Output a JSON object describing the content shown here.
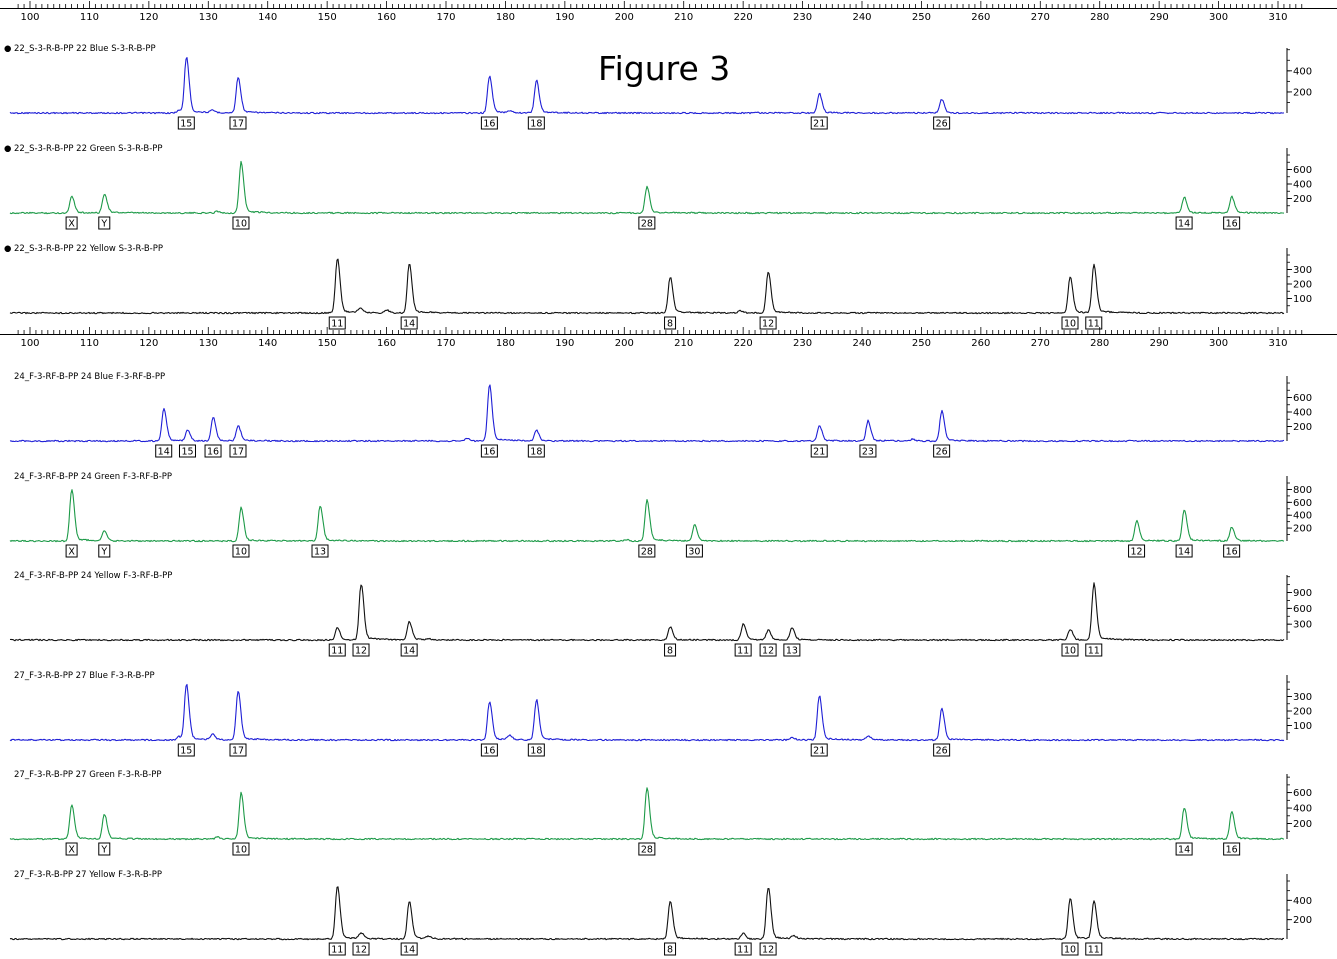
{
  "figure_title": "Figure 3",
  "colors": {
    "Blue": "#1f1fd6",
    "Green": "#1d9a48",
    "Yellow": "#111111"
  },
  "chart_data": {
    "type": "line",
    "x_axis_label": "",
    "x_ticks": [
      100,
      110,
      120,
      130,
      140,
      150,
      160,
      170,
      180,
      190,
      200,
      210,
      220,
      230,
      240,
      250,
      260,
      270,
      280,
      290,
      300,
      310
    ],
    "x_range": [
      96,
      314
    ],
    "groups": [
      {
        "x_ticks_printed": true,
        "lanes": [
          {
            "label": "22_S-3-R-B-PP     22 Blue    S-3-R-B-PP",
            "bullet": "●",
            "dye": "Blue",
            "y_max": 550,
            "y_ticks": [
              200,
              400
            ],
            "peaks": [
              {
                "bp": 126.3,
                "height": 520
              },
              {
                "bp": 135,
                "height": 330
              },
              {
                "bp": 177.3,
                "height": 340
              },
              {
                "bp": 185.2,
                "height": 300
              },
              {
                "bp": 232.8,
                "height": 180
              },
              {
                "bp": 253.4,
                "height": 130
              }
            ],
            "minor_peaks": [
              {
                "bp": 125,
                "height": 25
              },
              {
                "bp": 130.7,
                "height": 20
              },
              {
                "bp": 180.7,
                "height": 20
              },
              {
                "bp": 222,
                "height": 10
              }
            ],
            "alleles": [
              {
                "bp": 126.3,
                "label": "15"
              },
              {
                "bp": 135,
                "label": "17"
              },
              {
                "bp": 177.3,
                "label": "16"
              },
              {
                "bp": 185.2,
                "label": "18"
              },
              {
                "bp": 232.8,
                "label": "21"
              },
              {
                "bp": 253.4,
                "label": "26"
              }
            ]
          },
          {
            "label": "22_S-3-R-B-PP     22 Green    S-3-R-B-PP",
            "bullet": "●",
            "dye": "Green",
            "y_max": 800,
            "y_ticks": [
              200,
              400,
              600
            ],
            "peaks": [
              {
                "bp": 107,
                "height": 230
              },
              {
                "bp": 112.5,
                "height": 260
              },
              {
                "bp": 135.5,
                "height": 680
              },
              {
                "bp": 203.8,
                "height": 350
              },
              {
                "bp": 294.2,
                "height": 215
              },
              {
                "bp": 302.2,
                "height": 215
              }
            ],
            "minor_peaks": [
              {
                "bp": 131.5,
                "height": 25
              },
              {
                "bp": 200,
                "height": 10
              }
            ],
            "alleles": [
              {
                "bp": 107,
                "label": "X"
              },
              {
                "bp": 112.5,
                "label": "Y"
              },
              {
                "bp": 135.5,
                "label": "10"
              },
              {
                "bp": 203.8,
                "label": "28"
              },
              {
                "bp": 294.2,
                "label": "14"
              },
              {
                "bp": 302.2,
                "label": "16"
              }
            ]
          },
          {
            "label": "22_S-3-R-B-PP     22 Yellow    S-3-R-B-PP",
            "bullet": "●",
            "dye": "Yellow",
            "y_max": 400,
            "y_ticks": [
              100,
              200,
              300
            ],
            "peaks": [
              {
                "bp": 151.7,
                "height": 370
              },
              {
                "bp": 163.8,
                "height": 335
              },
              {
                "bp": 207.7,
                "height": 245
              },
              {
                "bp": 224.2,
                "height": 280
              },
              {
                "bp": 275,
                "height": 245
              },
              {
                "bp": 279,
                "height": 320
              }
            ],
            "minor_peaks": [
              {
                "bp": 155.5,
                "height": 30
              },
              {
                "bp": 160,
                "height": 20
              },
              {
                "bp": 219.5,
                "height": 15
              }
            ],
            "alleles": [
              {
                "bp": 151.7,
                "label": "11"
              },
              {
                "bp": 163.8,
                "label": "14"
              },
              {
                "bp": 207.7,
                "label": "8"
              },
              {
                "bp": 224.2,
                "label": "12"
              },
              {
                "bp": 275,
                "label": "10"
              },
              {
                "bp": 279,
                "label": "11"
              }
            ]
          }
        ]
      },
      {
        "x_ticks_printed": true,
        "lanes": [
          {
            "label": "24_F-3-RF-B-PP     24 Blue    F-3-RF-B-PP",
            "bullet": "",
            "dye": "Blue",
            "y_max": 800,
            "y_ticks": [
              200,
              400,
              600
            ],
            "peaks": [
              {
                "bp": 122.5,
                "height": 440
              },
              {
                "bp": 126.5,
                "height": 140
              },
              {
                "bp": 130.8,
                "height": 320
              },
              {
                "bp": 135,
                "height": 200
              },
              {
                "bp": 177.3,
                "height": 750
              },
              {
                "bp": 185.2,
                "height": 150
              },
              {
                "bp": 232.8,
                "height": 210
              },
              {
                "bp": 241,
                "height": 270
              },
              {
                "bp": 253.4,
                "height": 400
              }
            ],
            "minor_peaks": [
              {
                "bp": 173.5,
                "height": 40
              },
              {
                "bp": 248.5,
                "height": 25
              }
            ],
            "alleles": [
              {
                "bp": 122.5,
                "label": "14"
              },
              {
                "bp": 126.5,
                "label": "15"
              },
              {
                "bp": 130.8,
                "label": "16"
              },
              {
                "bp": 135,
                "label": "17"
              },
              {
                "bp": 177.3,
                "label": "16"
              },
              {
                "bp": 185.2,
                "label": "18"
              },
              {
                "bp": 232.8,
                "label": "21"
              },
              {
                "bp": 241,
                "label": "23"
              },
              {
                "bp": 253.4,
                "label": "26"
              }
            ]
          },
          {
            "label": "24_F-3-RF-B-PP     24 Green    F-3-RF-B-PP",
            "bullet": "",
            "dye": "Green",
            "y_max": 900,
            "y_ticks": [
              200,
              400,
              600,
              800
            ],
            "peaks": [
              {
                "bp": 107,
                "height": 780
              },
              {
                "bp": 112.5,
                "height": 150
              },
              {
                "bp": 135.5,
                "height": 500
              },
              {
                "bp": 148.8,
                "height": 540
              },
              {
                "bp": 203.8,
                "height": 620
              },
              {
                "bp": 211.8,
                "height": 240
              },
              {
                "bp": 286.2,
                "height": 300
              },
              {
                "bp": 294.2,
                "height": 480
              },
              {
                "bp": 302.2,
                "height": 210
              }
            ],
            "minor_peaks": [
              {
                "bp": 200.3,
                "height": 20
              }
            ],
            "alleles": [
              {
                "bp": 107,
                "label": "X"
              },
              {
                "bp": 112.5,
                "label": "Y"
              },
              {
                "bp": 135.5,
                "label": "10"
              },
              {
                "bp": 148.8,
                "label": "13"
              },
              {
                "bp": 203.8,
                "label": "28"
              },
              {
                "bp": 211.8,
                "label": "30"
              },
              {
                "bp": 286.2,
                "label": "12"
              },
              {
                "bp": 294.2,
                "label": "14"
              },
              {
                "bp": 302.2,
                "label": "16"
              }
            ]
          },
          {
            "label": "24_F-3-RF-B-PP     24 Yellow    F-3-RF-B-PP",
            "bullet": "",
            "dye": "Yellow",
            "y_max": 1100,
            "y_ticks": [
              300,
              600,
              900
            ],
            "peaks": [
              {
                "bp": 151.7,
                "height": 230
              },
              {
                "bp": 155.7,
                "height": 1050
              },
              {
                "bp": 163.8,
                "height": 340
              },
              {
                "bp": 207.7,
                "height": 240
              },
              {
                "bp": 220,
                "height": 300
              },
              {
                "bp": 224.2,
                "height": 180
              },
              {
                "bp": 228.2,
                "height": 220
              },
              {
                "bp": 275,
                "height": 200
              },
              {
                "bp": 279,
                "height": 1030
              }
            ],
            "minor_peaks": [
              {
                "bp": 167,
                "height": 20
              }
            ],
            "alleles": [
              {
                "bp": 151.7,
                "label": "11"
              },
              {
                "bp": 155.7,
                "label": "12"
              },
              {
                "bp": 163.8,
                "label": "14"
              },
              {
                "bp": 207.7,
                "label": "8"
              },
              {
                "bp": 220,
                "label": "11"
              },
              {
                "bp": 224.2,
                "label": "12"
              },
              {
                "bp": 228.2,
                "label": "13"
              },
              {
                "bp": 275,
                "label": "10"
              },
              {
                "bp": 279,
                "label": "11"
              }
            ]
          },
          {
            "label": "27_F-3-R-B-PP     27 Blue    F-3-R-B-PP",
            "bullet": "",
            "dye": "Blue",
            "y_max": 400,
            "y_ticks": [
              100,
              200,
              300
            ],
            "peaks": [
              {
                "bp": 126.3,
                "height": 375
              },
              {
                "bp": 135,
                "height": 330
              },
              {
                "bp": 177.3,
                "height": 260
              },
              {
                "bp": 185.2,
                "height": 270
              },
              {
                "bp": 232.8,
                "height": 300
              },
              {
                "bp": 253.4,
                "height": 210
              }
            ],
            "minor_peaks": [
              {
                "bp": 125,
                "height": 25
              },
              {
                "bp": 130.7,
                "height": 40
              },
              {
                "bp": 180.7,
                "height": 30
              },
              {
                "bp": 228.2,
                "height": 20
              },
              {
                "bp": 241,
                "height": 30
              }
            ],
            "alleles": [
              {
                "bp": 126.3,
                "label": "15"
              },
              {
                "bp": 135,
                "label": "17"
              },
              {
                "bp": 177.3,
                "label": "16"
              },
              {
                "bp": 185.2,
                "label": "18"
              },
              {
                "bp": 232.8,
                "label": "21"
              },
              {
                "bp": 253.4,
                "label": "26"
              }
            ]
          },
          {
            "label": "27_F-3-R-B-PP     27 Green    F-3-R-B-PP",
            "bullet": "",
            "dye": "Green",
            "y_max": 750,
            "y_ticks": [
              200,
              400,
              600
            ],
            "peaks": [
              {
                "bp": 107,
                "height": 430
              },
              {
                "bp": 112.5,
                "height": 310
              },
              {
                "bp": 135.5,
                "height": 580
              },
              {
                "bp": 203.8,
                "height": 640
              },
              {
                "bp": 294.2,
                "height": 400
              },
              {
                "bp": 302.2,
                "height": 345
              }
            ],
            "minor_peaks": [
              {
                "bp": 131.5,
                "height": 25
              }
            ],
            "alleles": [
              {
                "bp": 107,
                "label": "X"
              },
              {
                "bp": 112.5,
                "label": "Y"
              },
              {
                "bp": 135.5,
                "label": "10"
              },
              {
                "bp": 203.8,
                "label": "28"
              },
              {
                "bp": 294.2,
                "label": "14"
              },
              {
                "bp": 302.2,
                "label": "16"
              }
            ]
          },
          {
            "label": "27_F-3-R-B-PP     27 Yellow    F-3-R-B-PP",
            "bullet": "",
            "dye": "Yellow",
            "y_max": 600,
            "y_ticks": [
              200,
              400
            ],
            "peaks": [
              {
                "bp": 151.7,
                "height": 540
              },
              {
                "bp": 155.7,
                "height": 60
              },
              {
                "bp": 163.8,
                "height": 380
              },
              {
                "bp": 207.7,
                "height": 390
              },
              {
                "bp": 220,
                "height": 60
              },
              {
                "bp": 224.2,
                "height": 530
              },
              {
                "bp": 275,
                "height": 410
              },
              {
                "bp": 279,
                "height": 380
              }
            ],
            "minor_peaks": [
              {
                "bp": 167,
                "height": 25
              },
              {
                "bp": 228.5,
                "height": 30
              }
            ],
            "alleles": [
              {
                "bp": 151.7,
                "label": "11"
              },
              {
                "bp": 155.7,
                "label": "12"
              },
              {
                "bp": 163.8,
                "label": "14"
              },
              {
                "bp": 207.7,
                "label": "8"
              },
              {
                "bp": 220,
                "label": "11"
              },
              {
                "bp": 224.2,
                "label": "12"
              },
              {
                "bp": 275,
                "label": "10"
              },
              {
                "bp": 279,
                "label": "11"
              }
            ]
          }
        ]
      }
    ]
  }
}
